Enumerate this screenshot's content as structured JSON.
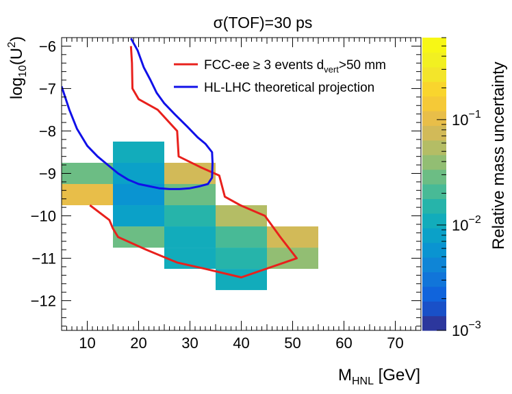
{
  "chart_data": {
    "type": "heatmap",
    "title": "σ(TOF)=30 ps",
    "xlabel": {
      "main": "M",
      "sub": "HNL",
      "rest": " [GeV]"
    },
    "ylabel": {
      "pre": "log",
      "sub": "10",
      "mid": "(U",
      "sup": "2",
      "post": ")"
    },
    "zlabel": "Relative mass uncertainty",
    "xlim": [
      5,
      75
    ],
    "ylim": [
      -12.7,
      -5.8
    ],
    "zlim": [
      0.001,
      0.6
    ],
    "zscale": "log",
    "x_ticks": [
      10,
      20,
      30,
      40,
      50,
      60,
      70
    ],
    "y_ticks": [
      -6,
      -7,
      -8,
      -9,
      -10,
      -11,
      -12
    ],
    "z_ticks": [
      {
        "value": 0.001,
        "base": "10",
        "exp": "−3"
      },
      {
        "value": 0.01,
        "base": "10",
        "exp": "−2"
      },
      {
        "value": 0.1,
        "base": "10",
        "exp": "−1"
      }
    ],
    "cells": [
      {
        "x0": 5,
        "x1": 15,
        "y0": -9.25,
        "y1": -8.75,
        "z": 0.025
      },
      {
        "x0": 5,
        "x1": 15,
        "y0": -9.75,
        "y1": -9.25,
        "z": 0.09
      },
      {
        "x0": 15,
        "x1": 25,
        "y0": -8.75,
        "y1": -8.25,
        "z": 0.012
      },
      {
        "x0": 15,
        "x1": 25,
        "y0": -9.25,
        "y1": -8.75,
        "z": 0.007
      },
      {
        "x0": 15,
        "x1": 25,
        "y0": -9.75,
        "y1": -9.25,
        "z": 0.0055
      },
      {
        "x0": 15,
        "x1": 25,
        "y0": -10.25,
        "y1": -9.75,
        "z": 0.008
      },
      {
        "x0": 15,
        "x1": 25,
        "y0": -10.75,
        "y1": -10.25,
        "z": 0.028
      },
      {
        "x0": 25,
        "x1": 35,
        "y0": -9.25,
        "y1": -8.75,
        "z": 0.07
      },
      {
        "x0": 25,
        "x1": 35,
        "y0": -9.75,
        "y1": -9.25,
        "z": 0.025
      },
      {
        "x0": 25,
        "x1": 35,
        "y0": -10.25,
        "y1": -9.75,
        "z": 0.013
      },
      {
        "x0": 25,
        "x1": 35,
        "y0": -10.75,
        "y1": -10.25,
        "z": 0.01
      },
      {
        "x0": 25,
        "x1": 35,
        "y0": -11.25,
        "y1": -10.75,
        "z": 0.01
      },
      {
        "x0": 35,
        "x1": 45,
        "y0": -10.25,
        "y1": -9.75,
        "z": 0.05
      },
      {
        "x0": 35,
        "x1": 45,
        "y0": -10.75,
        "y1": -10.25,
        "z": 0.018
      },
      {
        "x0": 35,
        "x1": 45,
        "y0": -11.25,
        "y1": -10.75,
        "z": 0.016
      },
      {
        "x0": 35,
        "x1": 45,
        "y0": -11.75,
        "y1": -11.25,
        "z": 0.012
      },
      {
        "x0": 45,
        "x1": 55,
        "y0": -10.75,
        "y1": -10.25,
        "z": 0.07
      },
      {
        "x0": 45,
        "x1": 55,
        "y0": -11.25,
        "y1": -10.75,
        "z": 0.035
      }
    ],
    "series": [
      {
        "name": "FCC-ee ≥ 3 events d",
        "name_sub": "vert",
        "name_rest": ">50 mm",
        "color": "#e8201c",
        "points": [
          [
            18.5,
            -6.0
          ],
          [
            18.7,
            -6.4
          ],
          [
            18.8,
            -7.0
          ],
          [
            20,
            -7.25
          ],
          [
            23.7,
            -7.5
          ],
          [
            27.5,
            -8.0
          ],
          [
            27.8,
            -8.6
          ],
          [
            32,
            -8.85
          ],
          [
            35.7,
            -9.05
          ],
          [
            36.8,
            -9.55
          ],
          [
            39.8,
            -9.75
          ],
          [
            44.6,
            -10.0
          ],
          [
            47.6,
            -10.5
          ],
          [
            50.8,
            -11.0
          ],
          [
            40,
            -11.45
          ],
          [
            33,
            -11.25
          ],
          [
            27.5,
            -11.1
          ],
          [
            21.5,
            -10.8
          ],
          [
            16,
            -10.5
          ],
          [
            15,
            -10.3
          ],
          [
            14.3,
            -10.1
          ],
          [
            10.5,
            -9.75
          ]
        ]
      },
      {
        "name": "HL-LHC theoretical projection",
        "color": "#1010e8",
        "points": [
          [
            5,
            -6.95
          ],
          [
            6.5,
            -7.5
          ],
          [
            8,
            -7.95
          ],
          [
            10,
            -8.35
          ],
          [
            12,
            -8.6
          ],
          [
            14,
            -8.8
          ],
          [
            16,
            -9.0
          ],
          [
            18,
            -9.15
          ],
          [
            20,
            -9.25
          ],
          [
            22,
            -9.3
          ],
          [
            24,
            -9.35
          ],
          [
            26,
            -9.37
          ],
          [
            28,
            -9.37
          ],
          [
            30,
            -9.35
          ],
          [
            32,
            -9.3
          ],
          [
            33.5,
            -9.25
          ],
          [
            34.3,
            -9.1
          ],
          [
            34.4,
            -8.75
          ],
          [
            34.3,
            -8.5
          ],
          [
            33,
            -8.3
          ],
          [
            31.5,
            -8.15
          ],
          [
            29.5,
            -7.9
          ],
          [
            27,
            -7.6
          ],
          [
            25,
            -7.35
          ],
          [
            23.5,
            -7.1
          ],
          [
            22.3,
            -6.8
          ],
          [
            21,
            -6.5
          ],
          [
            19.8,
            -6.1
          ],
          [
            18.5,
            -5.82
          ]
        ]
      }
    ],
    "legend": "top-right",
    "grid": false
  }
}
